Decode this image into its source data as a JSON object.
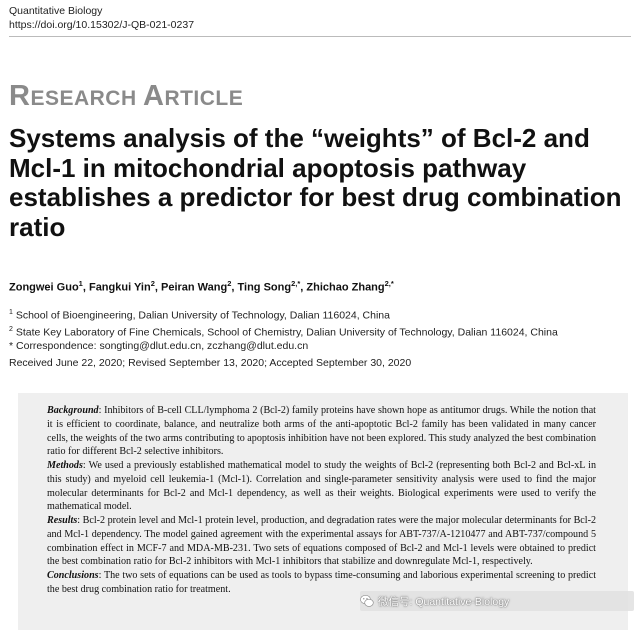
{
  "journal": {
    "name": "Quantitative Biology",
    "doi": "https://doi.org/10.15302/J-QB-021-0237"
  },
  "article_type": {
    "first_letter": "R",
    "rest_word1": "ESEARCH",
    "word2_first": "A",
    "word2_rest": "RTICLE"
  },
  "title": "Systems analysis of the “weights” of Bcl-2 and Mcl-1 in mitochondrial apoptosis pathway establishes a predictor for best drug combination ratio",
  "authors": [
    {
      "name": "Zongwei Guo",
      "sup": "1"
    },
    {
      "name": "Fangkui Yin",
      "sup": "2"
    },
    {
      "name": "Peiran Wang",
      "sup": "2"
    },
    {
      "name": "Ting Song",
      "sup": "2,*"
    },
    {
      "name": "Zhichao Zhang",
      "sup": "2,*"
    }
  ],
  "affiliations": [
    {
      "mark": "1",
      "text": "School of Bioengineering, Dalian University of Technology, Dalian 116024, China"
    },
    {
      "mark": "2",
      "text": "State Key Laboratory of Fine Chemicals, School of Chemistry, Dalian University of Technology, Dalian 116024, China"
    },
    {
      "mark": "*",
      "text": "Correspondence: songting@dlut.edu.cn, zczhang@dlut.edu.cn"
    }
  ],
  "dates": "Received June 22, 2020; Revised September 13, 2020; Accepted September 30, 2020",
  "abstract": [
    {
      "label": "Background",
      "text": ": Inhibitors of B-cell CLL/lymphoma 2 (Bcl-2) family proteins have shown hope as antitumor drugs. While the notion that it is efficient to coordinate, balance, and neutralize both arms of the anti-apoptotic Bcl-2 family has been validated in many cancer cells, the weights of the two arms contributing to apoptosis inhibition have not been explored. This study analyzed the best combination ratio for different Bcl-2 selective inhibitors."
    },
    {
      "label": "Methods",
      "text": ": We used a previously established mathematical model to study the weights of Bcl-2 (representing both Bcl-2 and Bcl-xL in this study) and myeloid cell leukemia-1 (Mcl-1). Correlation and single-parameter sensitivity analysis were used to find the major molecular determinants for Bcl-2 and Mcl-1 dependency, as well as their weights. Biological experiments were used to verify the mathematical model."
    },
    {
      "label": "Results",
      "text": ": Bcl-2 protein level and Mcl-1 protein level, production, and degradation rates were the major molecular determinants for Bcl-2 and Mcl-1 dependency. The model gained agreement with the experimental assays for ABT-737/A-1210477 and ABT-737/compound 5 combination effect in MCF-7 and MDA-MB-231. Two sets of equations composed of Bcl-2 and Mcl-1 levels were obtained to predict the best combination ratio for Bcl-2 inhibitors with Mcl-1 inhibitors that stabilize and downregulate Mcl-1, respectively."
    },
    {
      "label": "Conclusions",
      "text": ": The two sets of equations can be used as tools to bypass time-consuming and laborious experimental screening to predict the best drug combination ratio for treatment."
    }
  ],
  "watermark": {
    "text": "微信号: Quantitative-Biology",
    "icon": "wechat-icon"
  }
}
